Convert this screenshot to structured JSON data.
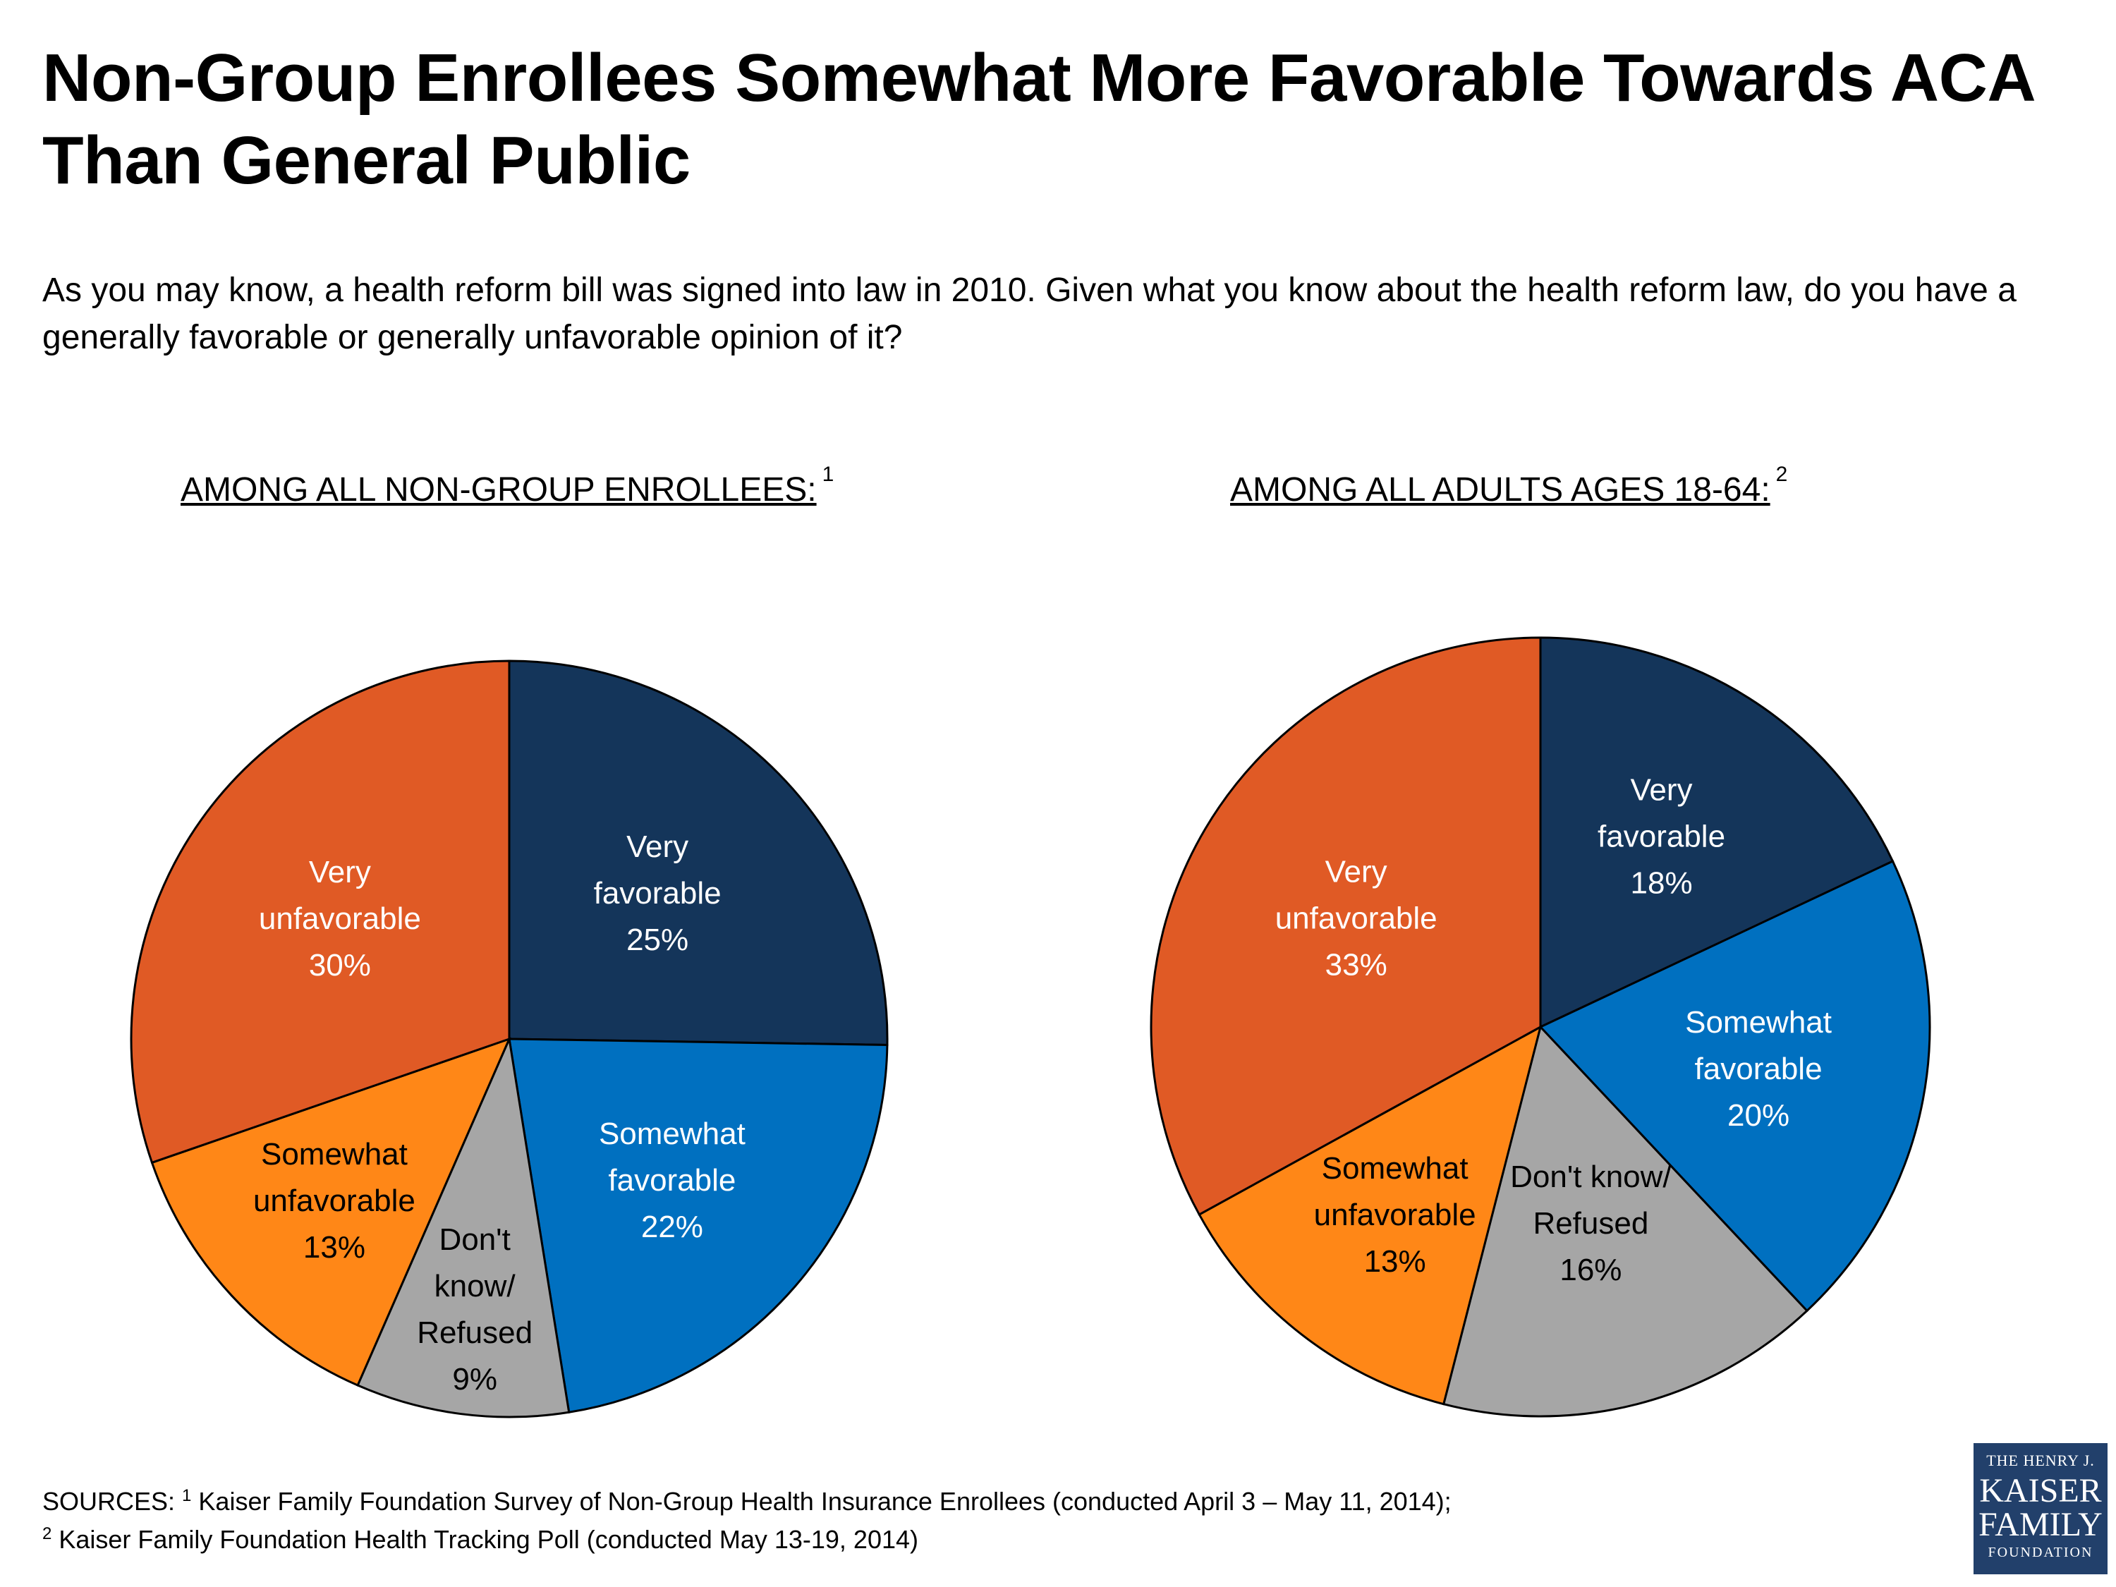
{
  "title": "Non-Group Enrollees Somewhat More Favorable Towards ACA Than General Public",
  "subtitle": "As you may know, a health reform bill was signed into law in 2010. Given what you know about the health reform law, do you have a generally favorable or generally unfavorable opinion of it?",
  "colors": {
    "very_favorable": "#14355a",
    "somewhat_favorable": "#0070c0",
    "dont_know": "#a6a6a6",
    "somewhat_unfavorable": "#ff8717",
    "very_unfavorable": "#e05a25"
  },
  "chart_data": [
    {
      "type": "pie",
      "title": "AMONG ALL NON-GROUP ENROLLEES:",
      "title_note": "1",
      "categories": [
        "Very favorable",
        "Somewhat favorable",
        "Don't know/ Refused",
        "Somewhat unfavorable",
        "Very unfavorable"
      ],
      "values": [
        25,
        22,
        9,
        13,
        30
      ],
      "labels": [
        [
          "Very",
          "favorable",
          "25%"
        ],
        [
          "Somewhat",
          "favorable",
          "22%"
        ],
        [
          "Don't",
          "know/",
          "Refused",
          "9%"
        ],
        [
          "Somewhat",
          "unfavorable",
          "13%"
        ],
        [
          "Very",
          "unfavorable",
          "30%"
        ]
      ]
    },
    {
      "type": "pie",
      "title": "AMONG ALL ADULTS AGES 18-64:",
      "title_note": "2",
      "categories": [
        "Very favorable",
        "Somewhat favorable",
        "Don't know/ Refused",
        "Somewhat unfavorable",
        "Very unfavorable"
      ],
      "values": [
        18,
        20,
        16,
        13,
        33
      ],
      "labels": [
        [
          "Very",
          "favorable",
          "18%"
        ],
        [
          "Somewhat",
          "favorable",
          "20%"
        ],
        [
          "Don't know/",
          "Refused",
          "16%"
        ],
        [
          "Somewhat",
          "unfavorable",
          "13%"
        ],
        [
          "Very",
          "unfavorable",
          "33%"
        ]
      ]
    }
  ],
  "sources": {
    "prefix": "SOURCES: ",
    "note1_mark": "1",
    "note1": "Kaiser Family Foundation Survey of Non-Group Health Insurance Enrollees (conducted April 3 – May 11, 2014);",
    "note2_mark": "2",
    "note2": "Kaiser Family Foundation Health Tracking Poll (conducted May 13-19, 2014)"
  },
  "logo": {
    "line1": "THE HENRY J.",
    "line2": "KAISER",
    "line3": "FAMILY",
    "line4": "FOUNDATION"
  }
}
